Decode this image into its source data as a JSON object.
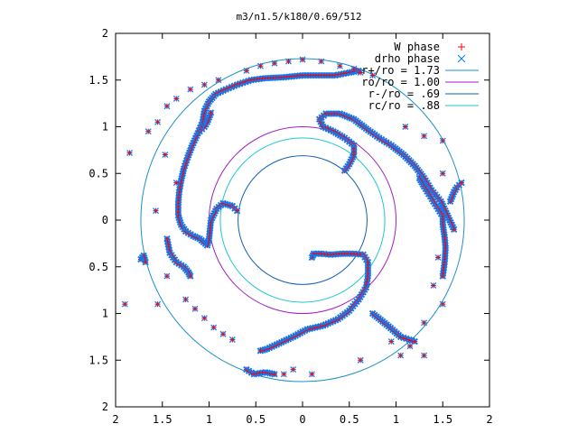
{
  "chart_data": {
    "type": "scatter",
    "title": "m3/n1.5/k180/0.69/512",
    "xlim": [
      -2,
      2
    ],
    "ylim": [
      -2,
      2
    ],
    "xticks": [
      -2,
      -1.5,
      -1,
      -0.5,
      0,
      0.5,
      1,
      1.5,
      2
    ],
    "yticks": [
      -2,
      -1.5,
      -1,
      -0.5,
      0,
      0.5,
      1,
      1.5,
      2
    ],
    "xtick_labels": [
      "2",
      "1.5",
      "1",
      "0.5",
      "0",
      "0.5",
      "1",
      "1.5",
      "2"
    ],
    "ytick_labels": [
      "2",
      "1.5",
      "1",
      "0.5",
      "0",
      "0.5",
      "1",
      "1.5",
      "2"
    ],
    "grid": false,
    "legend_position": "top-right",
    "series": [
      {
        "name": "W phase",
        "marker": "plus",
        "color": "#ff0000"
      },
      {
        "name": "drho phase",
        "marker": "cross",
        "color": "#0080ff"
      }
    ],
    "circles": [
      {
        "name": "r+/ro = 1.73",
        "radius": 1.73,
        "color": "#1e90c8"
      },
      {
        "name": "ro/ro = 1.00",
        "radius": 1.0,
        "color": "#a020c0"
      },
      {
        "name": "r-/ro = .69",
        "radius": 0.69,
        "color": "#1060b0"
      },
      {
        "name": "rc/ro = .88",
        "radius": 0.88,
        "color": "#20c8d0"
      }
    ],
    "arms": [
      [
        [
          0.45,
          0.53
        ],
        [
          0.5,
          0.6
        ],
        [
          0.55,
          0.7
        ],
        [
          0.55,
          0.8
        ],
        [
          0.45,
          0.88
        ],
        [
          0.33,
          0.95
        ],
        [
          0.22,
          1.0
        ],
        [
          0.18,
          1.08
        ],
        [
          0.25,
          1.14
        ],
        [
          0.4,
          1.14
        ],
        [
          0.55,
          1.08
        ],
        [
          0.68,
          0.98
        ],
        [
          0.82,
          0.88
        ],
        [
          0.95,
          0.8
        ],
        [
          1.08,
          0.7
        ],
        [
          1.2,
          0.58
        ],
        [
          1.3,
          0.45
        ],
        [
          1.38,
          0.32
        ],
        [
          1.48,
          0.2
        ],
        [
          1.55,
          0.05
        ],
        [
          1.62,
          -0.1
        ]
      ],
      [
        [
          1.25,
          0.45
        ],
        [
          1.3,
          0.36
        ],
        [
          1.35,
          0.28
        ],
        [
          1.4,
          0.2
        ],
        [
          1.45,
          0.12
        ],
        [
          1.5,
          0.04
        ],
        [
          1.5,
          -0.05
        ],
        [
          1.52,
          -0.18
        ],
        [
          1.53,
          -0.3
        ],
        [
          1.52,
          -0.45
        ],
        [
          1.5,
          -0.6
        ]
      ],
      [
        [
          0.1,
          -0.4
        ],
        [
          0.12,
          -0.36
        ],
        [
          0.2,
          -0.36
        ],
        [
          0.3,
          -0.37
        ],
        [
          0.42,
          -0.36
        ],
        [
          0.55,
          -0.36
        ],
        [
          0.65,
          -0.37
        ],
        [
          0.7,
          -0.45
        ],
        [
          0.7,
          -0.6
        ],
        [
          0.68,
          -0.72
        ],
        [
          0.6,
          -0.85
        ],
        [
          0.5,
          -0.97
        ],
        [
          0.38,
          -1.06
        ],
        [
          0.22,
          -1.13
        ],
        [
          0.05,
          -1.17
        ],
        [
          -0.1,
          -1.25
        ],
        [
          -0.25,
          -1.32
        ],
        [
          -0.38,
          -1.38
        ],
        [
          -0.45,
          -1.4
        ]
      ],
      [
        [
          -1.25,
          -0.12
        ],
        [
          -1.3,
          -0.05
        ],
        [
          -1.33,
          0.05
        ],
        [
          -1.33,
          0.18
        ],
        [
          -1.32,
          0.3
        ],
        [
          -1.3,
          0.42
        ],
        [
          -1.27,
          0.55
        ],
        [
          -1.23,
          0.67
        ],
        [
          -1.18,
          0.8
        ],
        [
          -1.12,
          0.93
        ],
        [
          -1.07,
          1.05
        ],
        [
          -1.05,
          1.17
        ],
        [
          -1.0,
          1.27
        ],
        [
          -0.93,
          1.35
        ],
        [
          -0.82,
          1.4
        ],
        [
          -0.7,
          1.45
        ],
        [
          -0.55,
          1.5
        ],
        [
          -0.4,
          1.52
        ],
        [
          -0.2,
          1.53
        ],
        [
          0.0,
          1.55
        ],
        [
          0.2,
          1.55
        ],
        [
          0.35,
          1.55
        ],
        [
          0.5,
          1.58
        ],
        [
          0.6,
          1.6
        ]
      ],
      [
        [
          -1.25,
          -0.12
        ],
        [
          -1.17,
          -0.17
        ],
        [
          -1.1,
          -0.2
        ],
        [
          -1.02,
          -0.27
        ],
        [
          -1.0,
          -0.2
        ],
        [
          -0.98,
          0.0
        ],
        [
          -0.92,
          0.12
        ],
        [
          -0.85,
          0.18
        ],
        [
          -0.75,
          0.15
        ],
        [
          -0.7,
          0.1
        ]
      ],
      [
        [
          -1.45,
          -0.2
        ],
        [
          -1.42,
          -0.35
        ],
        [
          -1.35,
          -0.45
        ],
        [
          -1.27,
          -0.5
        ],
        [
          -1.22,
          -0.56
        ],
        [
          -1.2,
          -0.6
        ]
      ],
      [
        [
          -1.73,
          -0.42
        ],
        [
          -1.7,
          -0.38
        ],
        [
          -1.68,
          -0.45
        ]
      ],
      [
        [
          0.75,
          -1.0
        ],
        [
          0.9,
          -1.12
        ],
        [
          1.05,
          -1.25
        ],
        [
          1.2,
          -1.3
        ]
      ],
      [
        [
          -0.6,
          -1.6
        ],
        [
          -0.52,
          -1.65
        ],
        [
          -0.4,
          -1.63
        ],
        [
          -0.3,
          -1.65
        ]
      ],
      [
        [
          -1.1,
          0.95
        ],
        [
          -1.05,
          1.0
        ],
        [
          -1.02,
          1.05
        ],
        [
          -1.0,
          1.1
        ],
        [
          -0.98,
          1.15
        ]
      ],
      [
        [
          1.58,
          0.2
        ],
        [
          1.62,
          0.3
        ],
        [
          1.65,
          0.35
        ],
        [
          1.7,
          0.4
        ]
      ]
    ],
    "scattered_points": [
      [
        -1.85,
        0.72
      ],
      [
        -1.57,
        0.1
      ],
      [
        -1.47,
        0.7
      ],
      [
        -1.35,
        0.4
      ],
      [
        -1.45,
        -0.6
      ],
      [
        -1.55,
        -0.9
      ],
      [
        -1.25,
        -0.85
      ],
      [
        -1.15,
        -0.95
      ],
      [
        -1.05,
        -1.05
      ],
      [
        -0.95,
        -1.15
      ],
      [
        -0.85,
        -1.22
      ],
      [
        -0.75,
        -1.28
      ],
      [
        -1.9,
        -0.9
      ],
      [
        -0.2,
        -1.65
      ],
      [
        -0.1,
        -1.6
      ],
      [
        0.1,
        -1.65
      ],
      [
        0.62,
        -1.5
      ],
      [
        -1.65,
        0.95
      ],
      [
        -1.55,
        1.05
      ],
      [
        -1.45,
        1.22
      ],
      [
        -1.35,
        1.3
      ],
      [
        -1.2,
        1.4
      ],
      [
        -1.05,
        1.45
      ],
      [
        -0.9,
        1.5
      ],
      [
        -0.6,
        1.6
      ],
      [
        -0.45,
        1.65
      ],
      [
        -0.3,
        1.68
      ],
      [
        -0.15,
        1.7
      ],
      [
        0.0,
        1.72
      ],
      [
        0.2,
        1.7
      ],
      [
        0.4,
        1.65
      ],
      [
        0.55,
        1.62
      ],
      [
        0.62,
        1.58
      ],
      [
        0.75,
        1.55
      ],
      [
        1.1,
        1.0
      ],
      [
        1.3,
        0.9
      ],
      [
        1.5,
        0.85
      ],
      [
        1.5,
        0.5
      ],
      [
        1.45,
        -0.4
      ],
      [
        1.4,
        -0.7
      ],
      [
        1.5,
        -0.9
      ],
      [
        1.3,
        -1.1
      ],
      [
        1.05,
        -1.45
      ],
      [
        0.95,
        -1.3
      ],
      [
        1.15,
        -1.35
      ],
      [
        1.3,
        -1.45
      ]
    ]
  }
}
